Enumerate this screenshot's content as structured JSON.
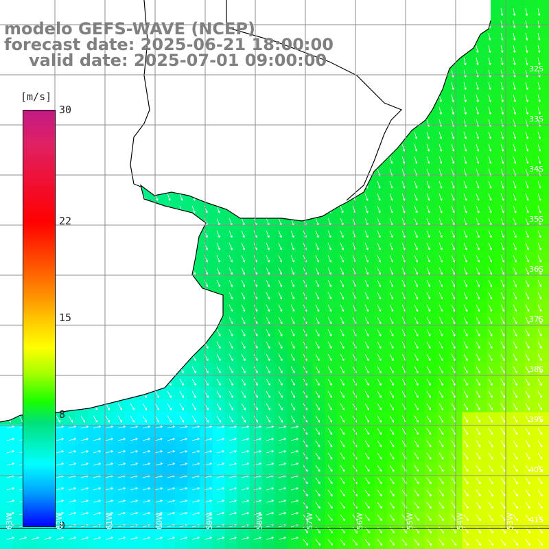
{
  "title": {
    "line1": "modelo GEFS-WAVE (NCEP)",
    "line2": "forecast date: 2025-06-21 18:00:00",
    "line3": "valid date: 2025-07-01 09:00:00"
  },
  "colorbar": {
    "unit": "[m/s]",
    "ticks": [
      {
        "label": "30",
        "value": 30
      },
      {
        "label": "22",
        "value": 22
      },
      {
        "label": "15",
        "value": 15
      },
      {
        "label": "8",
        "value": 8
      },
      {
        "label": "0",
        "value": 0
      }
    ],
    "min": 0,
    "max": 30
  },
  "latitude_labels": [
    "32S",
    "33S",
    "34S",
    "35S",
    "36S",
    "37S",
    "38S",
    "39S",
    "40S",
    "41S"
  ],
  "longitude_labels": [
    "63W",
    "62W",
    "61W",
    "60W",
    "59W",
    "58W",
    "57W",
    "56W",
    "55W",
    "54W",
    "53W"
  ],
  "colors": {
    "land": "#ffffff",
    "coastline": "#000000",
    "grid": "#8c8c8c",
    "title": "#808080",
    "arrows": "#ffffff"
  },
  "wind_field": {
    "units": "m/s",
    "description_stops": [
      0,
      8,
      15,
      22,
      30
    ]
  }
}
